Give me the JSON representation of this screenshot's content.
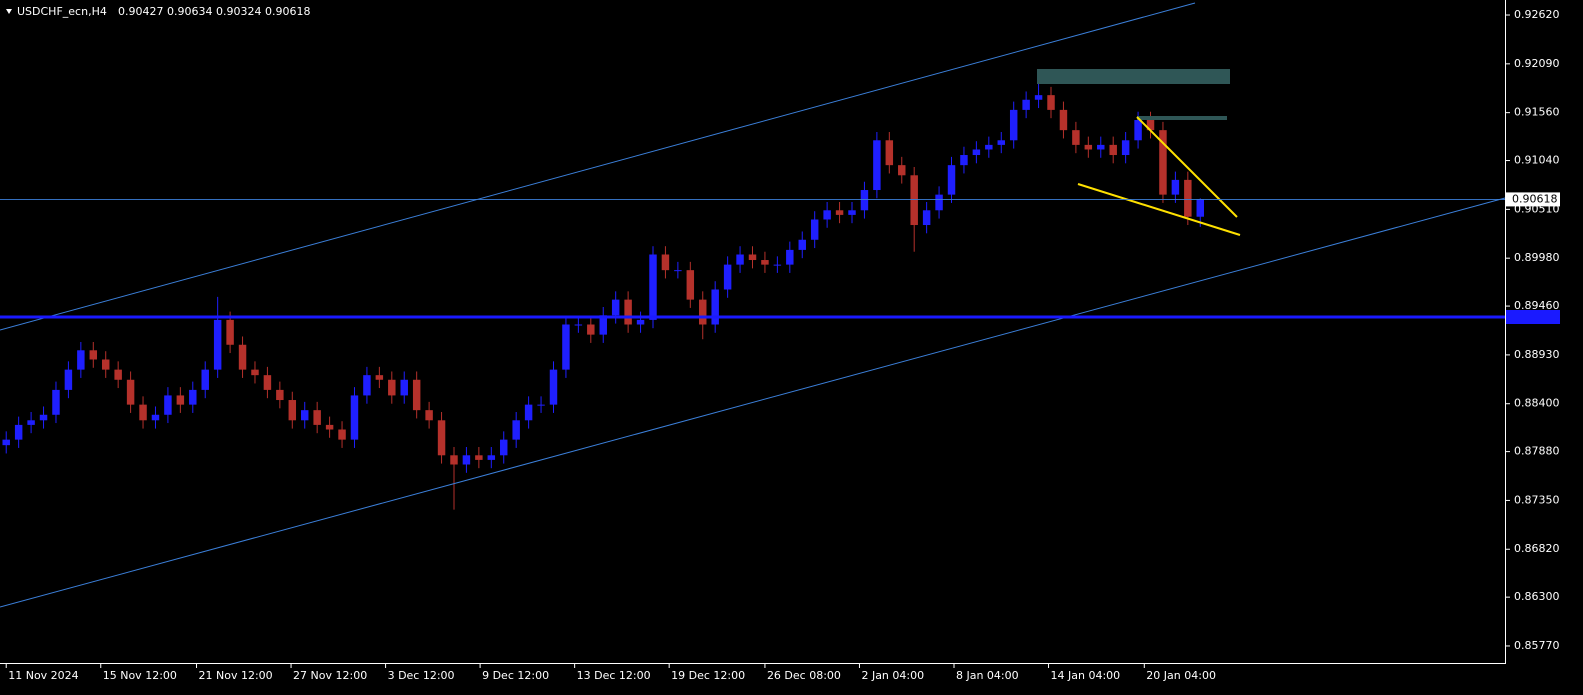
{
  "chart_data": {
    "type": "candlestick",
    "symbol": "USDCHF_ecn,H4",
    "ohlc_header": [
      0.90427,
      0.90634,
      0.90324,
      0.90618
    ],
    "bull_color": "#1f1fff",
    "bear_color": "#b5312b",
    "xlim": [
      -0.5,
      120.5
    ],
    "ylim": [
      0.85585,
      0.92783
    ],
    "yticks": [
      {
        "value": 0.9262,
        "label": "0.92620"
      },
      {
        "value": 0.9209,
        "label": "0.92090"
      },
      {
        "value": 0.9156,
        "label": "0.91560"
      },
      {
        "value": 0.9104,
        "label": "0.91040"
      },
      {
        "value": 0.9051,
        "label": "0.90510"
      },
      {
        "value": 0.8998,
        "label": "0.89980"
      },
      {
        "value": 0.8946,
        "label": "0.89460"
      },
      {
        "value": 0.8893,
        "label": "0.88930"
      },
      {
        "value": 0.884,
        "label": "0.88400"
      },
      {
        "value": 0.8788,
        "label": "0.87880"
      },
      {
        "value": 0.8735,
        "label": "0.87350"
      },
      {
        "value": 0.8682,
        "label": "0.86820"
      },
      {
        "value": 0.863,
        "label": "0.86300"
      },
      {
        "value": 0.8577,
        "label": "0.85770"
      }
    ],
    "xticks": [
      {
        "value": 0,
        "label": "11 Nov 2024"
      },
      {
        "value": 7.6,
        "label": "15 Nov 12:00"
      },
      {
        "value": 15.3,
        "label": "21 Nov 12:00"
      },
      {
        "value": 22.9,
        "label": "27 Nov 12:00"
      },
      {
        "value": 30.5,
        "label": "3 Dec 12:00"
      },
      {
        "value": 38.1,
        "label": "9 Dec 12:00"
      },
      {
        "value": 45.7,
        "label": "13 Dec 12:00"
      },
      {
        "value": 53.3,
        "label": "19 Dec 12:00"
      },
      {
        "value": 61,
        "label": "26 Dec 08:00"
      },
      {
        "value": 68.6,
        "label": "2 Jan 04:00"
      },
      {
        "value": 76.2,
        "label": "8 Jan 04:00"
      },
      {
        "value": 83.8,
        "label": "14 Jan 04:00"
      },
      {
        "value": 91.5,
        "label": "20 Jan 04:00"
      }
    ],
    "open": [
      0.8795,
      0.8801,
      0.8817,
      0.8822,
      0.8828,
      0.8855,
      0.8877,
      0.8898,
      0.8888,
      0.8877,
      0.8866,
      0.8839,
      0.8822,
      0.8828,
      0.8849,
      0.8839,
      0.8855,
      0.8877,
      0.8931,
      0.8904,
      0.8877,
      0.8871,
      0.8855,
      0.8844,
      0.8822,
      0.8833,
      0.8817,
      0.8812,
      0.8801,
      0.8849,
      0.8871,
      0.8866,
      0.8849,
      0.8866,
      0.8833,
      0.8822,
      0.8784,
      0.8774,
      0.8784,
      0.8779,
      0.8784,
      0.8801,
      0.8822,
      0.8839,
      0.8839,
      0.8877,
      0.8926,
      0.8926,
      0.8915,
      0.8936,
      0.8953,
      0.8926,
      0.8931,
      0.9002,
      0.8985,
      0.8985,
      0.8953,
      0.8926,
      0.8964,
      0.8991,
      0.9002,
      0.8996,
      0.8991,
      0.8991,
      0.9007,
      0.9018,
      0.904,
      0.905,
      0.9045,
      0.905,
      0.9072,
      0.9126,
      0.9099,
      0.9088,
      0.9034,
      0.905,
      0.9067,
      0.9099,
      0.911,
      0.9116,
      0.9121,
      0.9126,
      0.9159,
      0.917,
      0.9175,
      0.9159,
      0.9137,
      0.9121,
      0.9116,
      0.9121,
      0.911,
      0.9126,
      0.9148,
      0.9137,
      0.9067,
      0.9083,
      0.9043
    ],
    "high": [
      0.881,
      0.8826,
      0.8831,
      0.8837,
      0.8864,
      0.8886,
      0.8907,
      0.8907,
      0.8897,
      0.8886,
      0.8875,
      0.8848,
      0.8837,
      0.8858,
      0.8858,
      0.8864,
      0.8886,
      0.8956,
      0.894,
      0.8913,
      0.8886,
      0.888,
      0.8864,
      0.8853,
      0.8842,
      0.8842,
      0.8826,
      0.8821,
      0.8858,
      0.888,
      0.888,
      0.8875,
      0.8875,
      0.8875,
      0.8842,
      0.8831,
      0.8793,
      0.8793,
      0.8793,
      0.8793,
      0.881,
      0.8831,
      0.8848,
      0.8848,
      0.8886,
      0.8935,
      0.8935,
      0.8935,
      0.8945,
      0.8962,
      0.8962,
      0.894,
      0.9011,
      0.9011,
      0.8994,
      0.8994,
      0.8962,
      0.8973,
      0.9,
      0.9011,
      0.9011,
      0.9005,
      0.9,
      0.9016,
      0.9027,
      0.9049,
      0.9059,
      0.9059,
      0.9059,
      0.9081,
      0.9135,
      0.9135,
      0.9108,
      0.9097,
      0.9059,
      0.9076,
      0.9108,
      0.9119,
      0.9125,
      0.913,
      0.9135,
      0.9168,
      0.9179,
      0.919,
      0.9184,
      0.9168,
      0.9146,
      0.913,
      0.913,
      0.913,
      0.9135,
      0.9157,
      0.9157,
      0.9146,
      0.9092,
      0.9092,
      0.9063
    ],
    "low": [
      0.8786,
      0.8792,
      0.8808,
      0.8813,
      0.8819,
      0.8846,
      0.8868,
      0.8879,
      0.8868,
      0.8857,
      0.883,
      0.8813,
      0.8813,
      0.8819,
      0.883,
      0.883,
      0.8846,
      0.8868,
      0.8895,
      0.8868,
      0.8862,
      0.8846,
      0.8835,
      0.8813,
      0.8813,
      0.8808,
      0.8803,
      0.8792,
      0.8792,
      0.884,
      0.8857,
      0.884,
      0.884,
      0.8824,
      0.8813,
      0.8775,
      0.8725,
      0.8765,
      0.877,
      0.877,
      0.8775,
      0.8792,
      0.8813,
      0.883,
      0.883,
      0.8868,
      0.8917,
      0.8906,
      0.8906,
      0.8927,
      0.8917,
      0.8917,
      0.8922,
      0.8976,
      0.8976,
      0.8944,
      0.891,
      0.8917,
      0.8955,
      0.8982,
      0.8987,
      0.8982,
      0.8982,
      0.8982,
      0.8998,
      0.9009,
      0.9031,
      0.9036,
      0.9036,
      0.9041,
      0.9063,
      0.909,
      0.9079,
      0.9005,
      0.9025,
      0.9041,
      0.9058,
      0.909,
      0.9101,
      0.9107,
      0.9112,
      0.9117,
      0.915,
      0.9161,
      0.915,
      0.9128,
      0.9112,
      0.9107,
      0.9107,
      0.9101,
      0.9101,
      0.9117,
      0.9128,
      0.9058,
      0.9058,
      0.9034,
      0.9032
    ],
    "close": [
      0.8801,
      0.8817,
      0.8822,
      0.8828,
      0.8855,
      0.8877,
      0.8898,
      0.8888,
      0.8877,
      0.8866,
      0.8839,
      0.8822,
      0.8828,
      0.8849,
      0.8839,
      0.8855,
      0.8877,
      0.8931,
      0.8904,
      0.8877,
      0.8871,
      0.8855,
      0.8844,
      0.8822,
      0.8833,
      0.8817,
      0.8812,
      0.8801,
      0.8849,
      0.8871,
      0.8866,
      0.8849,
      0.8866,
      0.8833,
      0.8822,
      0.8784,
      0.8774,
      0.8784,
      0.8779,
      0.8784,
      0.8801,
      0.8822,
      0.8839,
      0.8839,
      0.8877,
      0.8926,
      0.8926,
      0.8915,
      0.8936,
      0.8953,
      0.8926,
      0.8931,
      0.9002,
      0.8985,
      0.8985,
      0.8953,
      0.8926,
      0.8964,
      0.8991,
      0.9002,
      0.8996,
      0.8991,
      0.8991,
      0.9007,
      0.9018,
      0.904,
      0.905,
      0.9045,
      0.905,
      0.9072,
      0.9126,
      0.9099,
      0.9088,
      0.9034,
      0.905,
      0.9067,
      0.9099,
      0.911,
      0.9116,
      0.9121,
      0.9126,
      0.9159,
      0.917,
      0.9175,
      0.9159,
      0.9137,
      0.9121,
      0.9116,
      0.9121,
      0.911,
      0.9126,
      0.9148,
      0.9137,
      0.9067,
      0.9083,
      0.9043,
      0.9062
    ]
  }
}
